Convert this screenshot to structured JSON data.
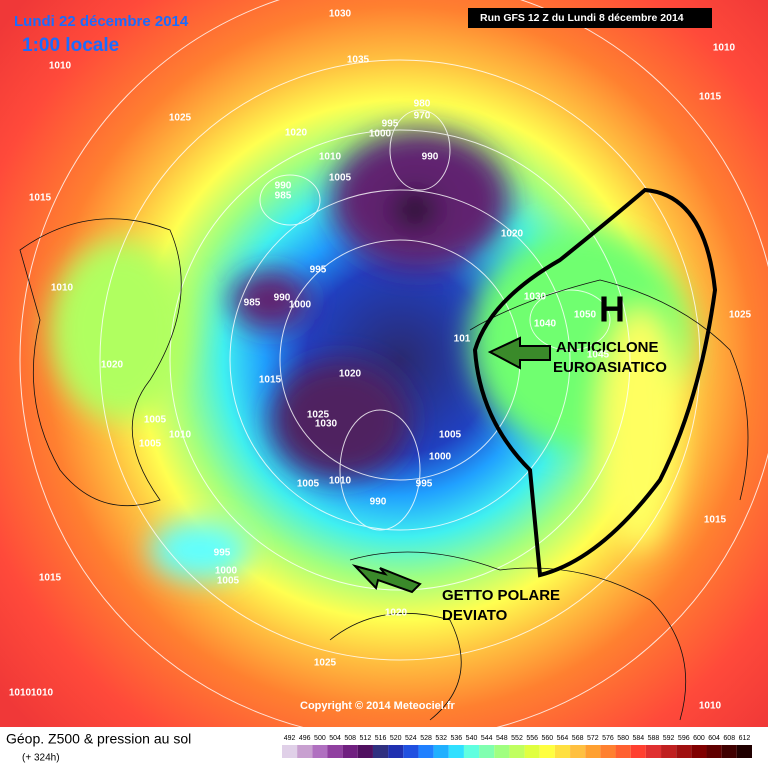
{
  "header": {
    "date": "Lundi 22 décembre 2014",
    "time": "1:00 locale",
    "run": "Run GFS 12 Z du Lundi 8 décembre 2014"
  },
  "annotations": {
    "high": "H",
    "anticyclone": [
      "ANTICICLONE",
      "EUROASIATICO"
    ],
    "jet": [
      "GETTO POLARE",
      "DEVIATO"
    ]
  },
  "isobar_labels": [
    1030,
    1010,
    1035,
    1025,
    1020,
    980,
    970,
    995,
    1000,
    990,
    1010,
    1005,
    990,
    985,
    1015,
    1020,
    1010,
    995,
    985,
    990,
    1000,
    1030,
    1050,
    1040,
    101,
    1045,
    1020,
    1015,
    1020,
    1025,
    1030,
    1005,
    1005,
    1010,
    1005,
    1000,
    1010,
    1005,
    995,
    990,
    995,
    1000,
    1005,
    1015,
    1020,
    1025,
    1010,
    1010,
    1015,
    1010,
    1025,
    1015,
    1010
  ],
  "footer": {
    "copyright": "Copyright © 2014 Meteociel.fr",
    "title": "Géop. Z500 & pression au sol",
    "lead": "(+ 324h)"
  },
  "colorbar": {
    "ticks": [
      492,
      496,
      500,
      504,
      508,
      512,
      516,
      520,
      524,
      528,
      532,
      536,
      540,
      544,
      548,
      552,
      556,
      560,
      564,
      568,
      572,
      576,
      580,
      584,
      588,
      592,
      596,
      600,
      604,
      608,
      612
    ],
    "colors": [
      "#e0d0e8",
      "#c8a0d0",
      "#b070c0",
      "#9040a0",
      "#702080",
      "#501060",
      "#303080",
      "#2030b0",
      "#2050e0",
      "#2080ff",
      "#20b0ff",
      "#30e0ff",
      "#60ffe0",
      "#80ffb0",
      "#a0ff80",
      "#c0ff60",
      "#e0ff40",
      "#ffff40",
      "#ffe040",
      "#ffc040",
      "#ffa030",
      "#ff8030",
      "#ff6030",
      "#ff4030",
      "#e03030",
      "#c02020",
      "#a01010",
      "#800000",
      "#600000",
      "#400000",
      "#200000"
    ]
  }
}
